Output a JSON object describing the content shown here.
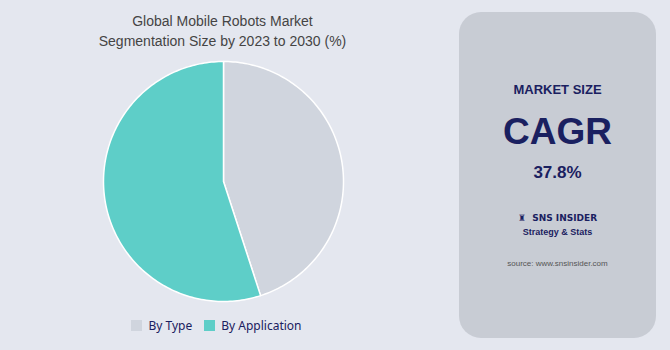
{
  "chart_data": {
    "type": "pie",
    "title": "Global Mobile Robots Market",
    "subtitle": "Segmentation Size by 2023 to 2030 (%)",
    "categories": [
      "By Type",
      "By Application"
    ],
    "values": [
      45,
      55
    ],
    "colors": [
      "#d0d5de",
      "#5ecec8"
    ],
    "legend": "bottom",
    "annotations": [
      "MARKET SIZE",
      "CAGR",
      "37.8%",
      "♜  SNS INSIDER",
      "Strategy & Stats",
      "source: www.snsinsider.com"
    ]
  }
}
